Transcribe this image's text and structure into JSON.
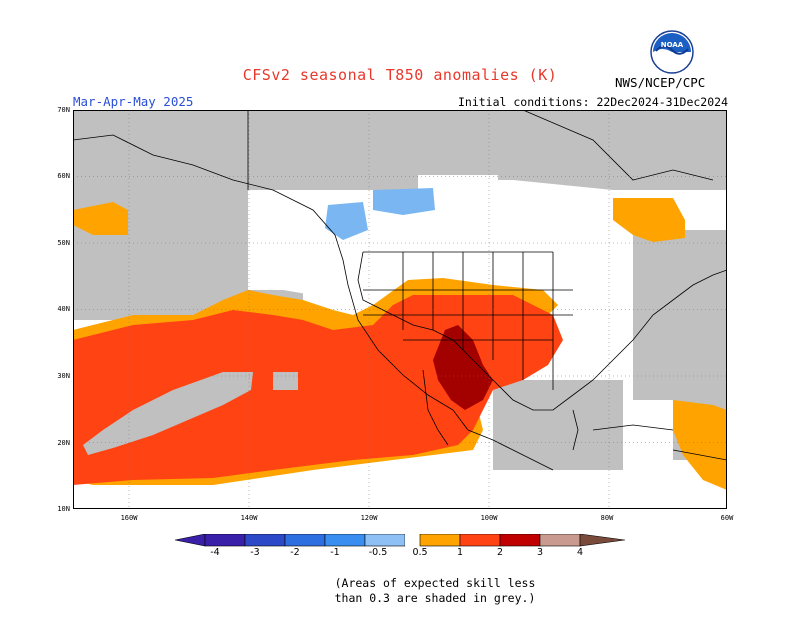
{
  "header": {
    "title": "CFSv2 seasonal T850 anomalies (K)",
    "season": "Mar-Apr-May 2025",
    "initial_conditions": "Initial conditions: 22Dec2024-31Dec2024",
    "agency": "NWS/NCEP/CPC",
    "logo_text": "NOAA"
  },
  "axes": {
    "lat_labels": [
      "70N",
      "60N",
      "50N",
      "40N",
      "30N",
      "20N",
      "10N"
    ],
    "lon_labels": [
      "160W",
      "140W",
      "120W",
      "100W",
      "80W",
      "60W"
    ]
  },
  "colorbar": {
    "labels": [
      "-4",
      "-3",
      "-2",
      "-1",
      "-0.5",
      "0.5",
      "1",
      "2",
      "3",
      "4"
    ],
    "colors": [
      "#3a1fa8",
      "#2c49c8",
      "#2d6fe0",
      "#3a8ef0",
      "#8ec0f6",
      "#ffffff",
      "#ffa300",
      "#ff4313",
      "#c00000",
      "#a80000",
      "#c89a90",
      "#7a4a3a"
    ]
  },
  "map_colors": {
    "grey": "#c0c0c0",
    "orange": "#ffa300",
    "red": "#ff4313",
    "darkred": "#a30000",
    "lightblue": "#79b6f2",
    "land_line": "#000000"
  },
  "note": {
    "line1": "(Areas of expected skill less",
    "line2": "than 0.3 are shaded in grey.)"
  }
}
